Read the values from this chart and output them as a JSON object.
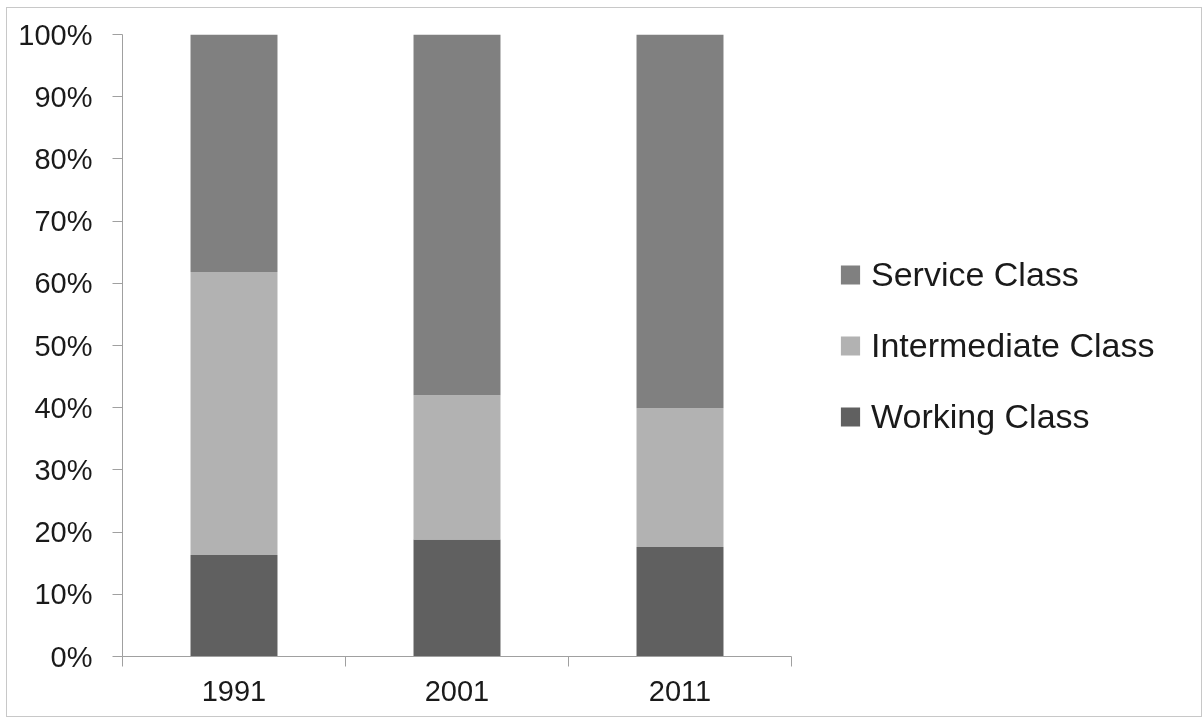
{
  "chart_data": {
    "type": "bar",
    "stacked": true,
    "categories": [
      "1991",
      "2001",
      "2011"
    ],
    "series": [
      {
        "name": "Working Class",
        "color": "#606060",
        "values": [
          16.3,
          18.8,
          17.6
        ]
      },
      {
        "name": "Intermediate Class",
        "color": "#b2b2b2",
        "values": [
          45.5,
          23.2,
          22.3
        ]
      },
      {
        "name": "Service Class",
        "color": "#808080",
        "values": [
          38.2,
          58.0,
          60.1
        ]
      }
    ],
    "ylim": [
      0,
      100
    ],
    "yticks": [
      {
        "value": 0,
        "label": "0%"
      },
      {
        "value": 10,
        "label": "10%"
      },
      {
        "value": 20,
        "label": "20%"
      },
      {
        "value": 30,
        "label": "30%"
      },
      {
        "value": 40,
        "label": "40%"
      },
      {
        "value": 50,
        "label": "50%"
      },
      {
        "value": 60,
        "label": "60%"
      },
      {
        "value": 70,
        "label": "70%"
      },
      {
        "value": 80,
        "label": "80%"
      },
      {
        "value": 90,
        "label": "90%"
      },
      {
        "value": 100,
        "label": "100%"
      }
    ],
    "grid": false,
    "legend": "right"
  }
}
